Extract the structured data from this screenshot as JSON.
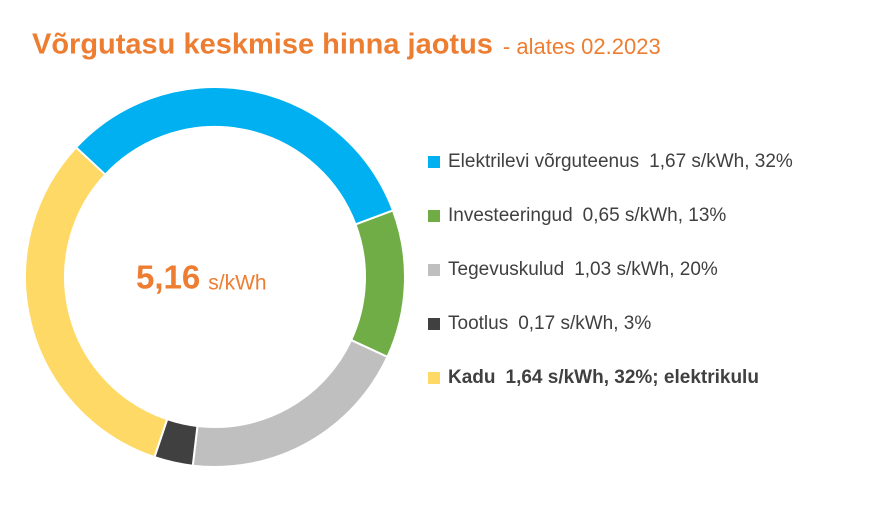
{
  "chart_data": {
    "type": "donut",
    "title": "Võrgutasu keskmise hinna jaotus",
    "subtitle": "- alates 02.2023",
    "total": {
      "value": 5.16,
      "label": "5,16"
    },
    "unit": "s/kWh",
    "categories": [
      "Elektrilevi võrguteenus",
      "Investeeringud",
      "Tegevuskulud",
      "Tootlus",
      "Kadu"
    ],
    "values": [
      1.67,
      0.65,
      1.03,
      0.17,
      1.64
    ],
    "value_labels": [
      "1,67 s/kWh, 32%",
      "0,65 s/kWh, 13%",
      "1,03 s/kWh, 20%",
      "0,17 s/kWh, 3%",
      "1,64 s/kWh, 32%; elektrikulu"
    ],
    "colors": [
      "#00b0f0",
      "#70ad47",
      "#bfbfbf",
      "#404040",
      "#ffd966"
    ],
    "bold": [
      false,
      false,
      false,
      false,
      true
    ]
  }
}
